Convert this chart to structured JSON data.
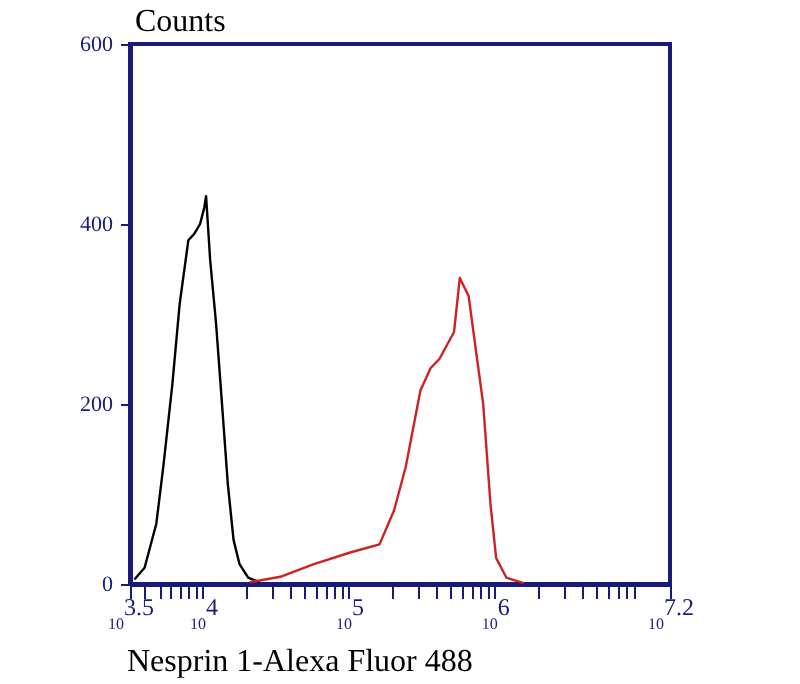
{
  "chart_data": {
    "type": "line",
    "xlabel": "Nesprin 1-Alexa Fluor 488",
    "ylabel": "Counts",
    "log": "x",
    "xlim": [
      3162,
      15849000
    ],
    "ylim": [
      0,
      600
    ],
    "yticks": [
      0,
      200,
      400,
      600
    ],
    "xticks": [
      {
        "value": 3162,
        "label": "10$^{3.5}$"
      },
      {
        "value": 4000,
        "label": null
      },
      {
        "value": 5000,
        "label": null
      },
      {
        "value": 6000,
        "label": null
      },
      {
        "value": 7000,
        "label": null
      },
      {
        "value": 8000,
        "label": null
      },
      {
        "value": 9000,
        "label": null
      },
      {
        "value": 10000,
        "label": "10$^{4}$"
      },
      {
        "value": 20000,
        "label": null
      },
      {
        "value": 30000,
        "label": null
      },
      {
        "value": 40000,
        "label": null
      },
      {
        "value": 50000,
        "label": null
      },
      {
        "value": 60000,
        "label": null
      },
      {
        "value": 70000,
        "label": null
      },
      {
        "value": 80000,
        "label": null
      },
      {
        "value": 90000,
        "label": null
      },
      {
        "value": 100000,
        "label": "10$^{5}$"
      },
      {
        "value": 200000,
        "label": null
      },
      {
        "value": 300000,
        "label": null
      },
      {
        "value": 400000,
        "label": null
      },
      {
        "value": 500000,
        "label": null
      },
      {
        "value": 600000,
        "label": null
      },
      {
        "value": 700000,
        "label": null
      },
      {
        "value": 800000,
        "label": null
      },
      {
        "value": 900000,
        "label": null
      },
      {
        "value": 1000000,
        "label": "10$^{6}$"
      },
      {
        "value": 2000000,
        "label": null
      },
      {
        "value": 3000000,
        "label": null
      },
      {
        "value": 4000000,
        "label": null
      },
      {
        "value": 5000000,
        "label": null
      },
      {
        "value": 6000000,
        "label": null
      },
      {
        "value": 7000000,
        "label": null
      },
      {
        "value": 8000000,
        "label": null
      },
      {
        "value": 9000000,
        "label": null
      },
      {
        "value": 15849000,
        "label": "10$^{7.2}$"
      }
    ],
    "series": [
      {
        "color": "#000000",
        "x": [
          3390,
          3980,
          4790,
          5370,
          6170,
          6920,
          7940,
          8710,
          9550,
          10200,
          10500,
          11200,
          12300,
          13500,
          14800,
          16200,
          17800,
          20400,
          24500
        ],
        "values": [
          5,
          18,
          67,
          133,
          222,
          311,
          382,
          389,
          400,
          418,
          431,
          360,
          289,
          200,
          111,
          49,
          22,
          7,
          2
        ]
      },
      {
        "color": "#cc2222",
        "x": [
          20900,
          33900,
          57500,
          102000,
          162000,
          204000,
          245000,
          309000,
          363000,
          417000,
          525000,
          575000,
          661000,
          741000,
          832000,
          933000,
          1020000,
          1200000,
          1580000
        ],
        "values": [
          2,
          8,
          22,
          35,
          44,
          82,
          130,
          215,
          240,
          250,
          280,
          340,
          320,
          260,
          200,
          89,
          29,
          7,
          1
        ]
      }
    ]
  }
}
